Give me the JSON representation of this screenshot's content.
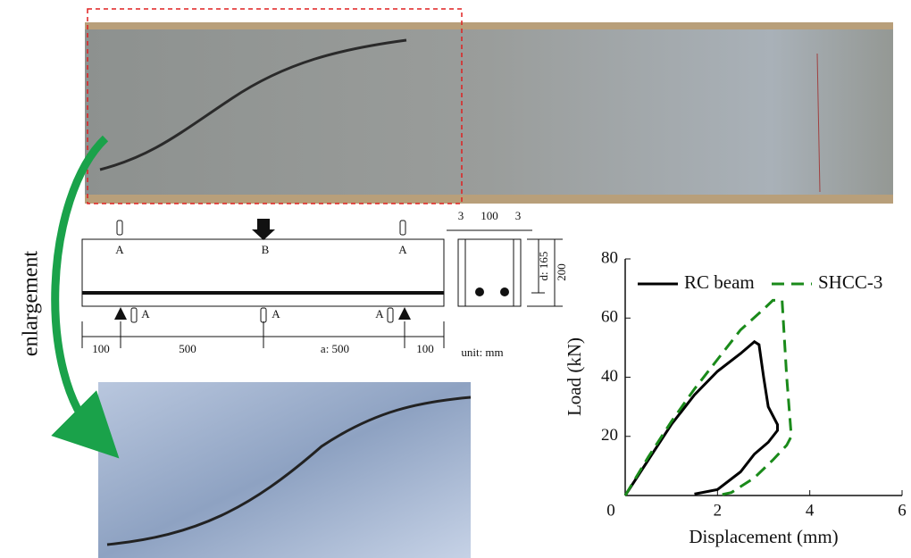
{
  "diagram": {
    "side_label": "enlargement",
    "beam_labels": [
      "A",
      "B",
      "A"
    ],
    "support_labels": [
      "A",
      "A",
      "A"
    ],
    "spans": [
      "100",
      "500",
      "a: 500",
      "100"
    ],
    "section_top": [
      "3",
      "100",
      "3"
    ],
    "section_depth": "d: 165",
    "section_height": "200",
    "unit": "unit: mm"
  },
  "chart_data": {
    "type": "line",
    "xlabel": "Displacement (mm)",
    "ylabel": "Load (kN)",
    "xlim": [
      0,
      6
    ],
    "ylim": [
      0,
      80
    ],
    "xticks": [
      0,
      2,
      4,
      6
    ],
    "yticks": [
      20,
      40,
      60,
      80
    ],
    "legend": "upper left",
    "series": [
      {
        "name": "RC beam",
        "color": "#000000",
        "dash": false,
        "x": [
          0,
          0.5,
          1,
          1.5,
          2,
          2.5,
          2.8,
          2.9,
          3,
          3.1,
          3.3,
          3.3,
          3.1,
          2.8,
          2.5,
          2,
          1.5
        ],
        "values": [
          0,
          12,
          24,
          34,
          42,
          48,
          52,
          51,
          40,
          30,
          24,
          22,
          18,
          14,
          8,
          2,
          0.5
        ]
      },
      {
        "name": "SHCC-3",
        "color": "#1a8a1a",
        "dash": true,
        "x": [
          0,
          0.5,
          1,
          1.5,
          2,
          2.5,
          3,
          3.2,
          3.4,
          3.5,
          3.6,
          3.5,
          3.2,
          2.8,
          2.3,
          2
        ],
        "values": [
          0,
          13,
          25,
          36,
          46,
          56,
          63,
          66,
          66,
          40,
          20,
          17,
          12,
          6,
          1,
          0
        ]
      }
    ]
  }
}
